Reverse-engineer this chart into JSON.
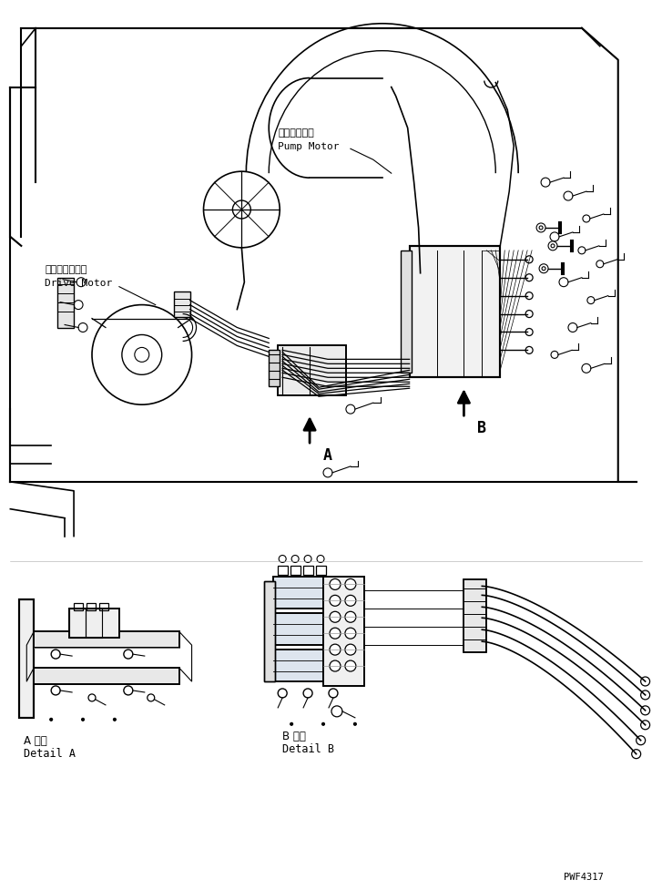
{
  "bg_color": "#ffffff",
  "line_color": "#000000",
  "fig_width": 7.16,
  "fig_height": 9.78,
  "dpi": 100,
  "label_pump_motor_jp": "ポンプモータ",
  "label_pump_motor_en": "Pump Motor",
  "label_drive_motor_jp": "ドライブモータ",
  "label_drive_motor_en": "Drive Motor",
  "label_A_jp": "A 詳細",
  "label_A_en": "Detail A",
  "label_B_jp": "B 詳細",
  "label_B_en": "Detail B",
  "label_A": "A",
  "label_B": "B",
  "part_number": "PWF4317"
}
